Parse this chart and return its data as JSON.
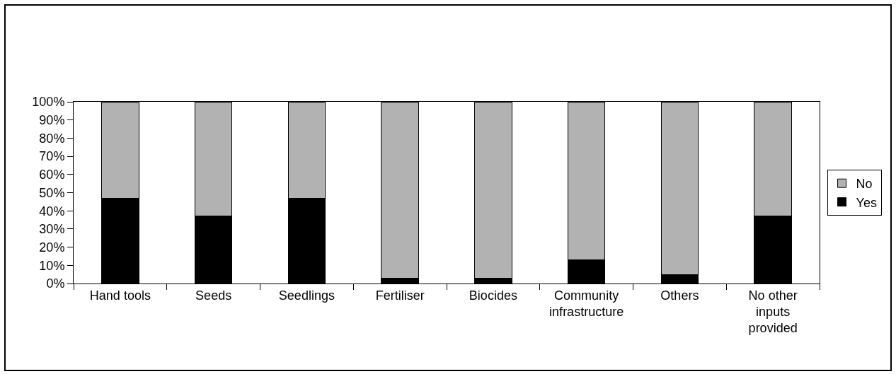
{
  "chart_data": {
    "type": "bar",
    "stacked": true,
    "categories": [
      "Hand tools",
      "Seeds",
      "Seedlings",
      "Fertiliser",
      "Biocides",
      "Community infrastructure",
      "Others",
      "No other inputs provided"
    ],
    "series": [
      {
        "name": "Yes",
        "color": "#000000",
        "values": [
          47,
          37,
          47,
          3,
          3,
          13,
          5,
          37
        ]
      },
      {
        "name": "No",
        "color": "#b2b2b2",
        "values": [
          53,
          63,
          53,
          97,
          97,
          87,
          95,
          63
        ]
      }
    ],
    "ylim": [
      0,
      100
    ],
    "yticks": [
      {
        "value": 0,
        "label": "0%"
      },
      {
        "value": 10,
        "label": "10%"
      },
      {
        "value": 20,
        "label": "20%"
      },
      {
        "value": 30,
        "label": "30%"
      },
      {
        "value": 40,
        "label": "40%"
      },
      {
        "value": 50,
        "label": "50%"
      },
      {
        "value": 60,
        "label": "60%"
      },
      {
        "value": 70,
        "label": "70%"
      },
      {
        "value": 80,
        "label": "80%"
      },
      {
        "value": 90,
        "label": "90%"
      },
      {
        "value": 100,
        "label": "100%"
      }
    ],
    "grid": false,
    "legend": "right"
  }
}
